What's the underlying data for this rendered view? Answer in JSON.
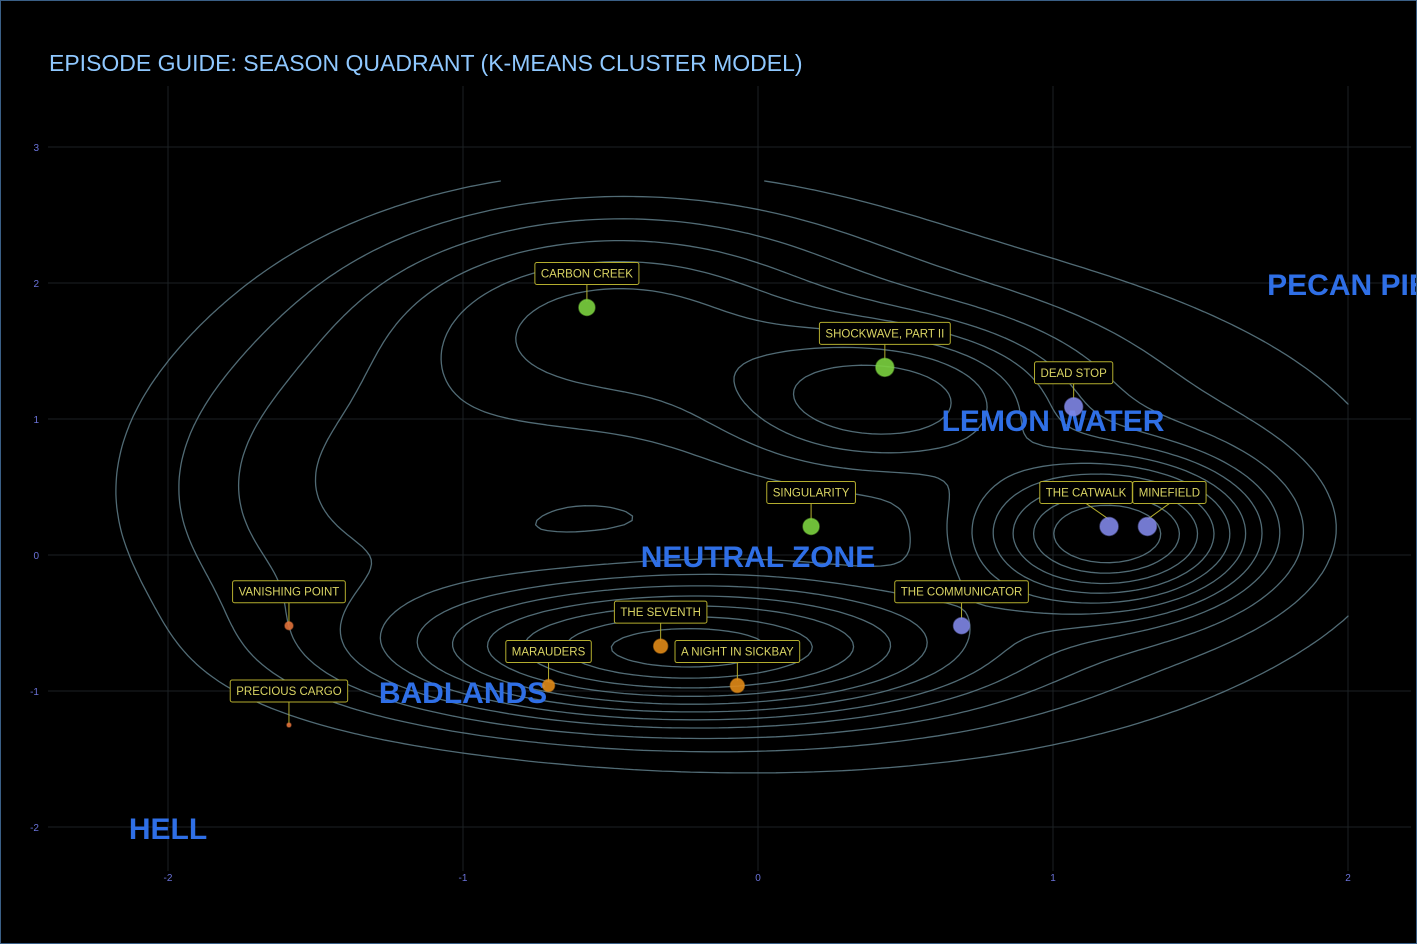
{
  "colors": {
    "background": "#000000",
    "grid": "#1c2124",
    "contour": "#5f7e8a",
    "title": "#8fc8ff",
    "ticks": "#6a72d8",
    "region_label": "#2f6fe6",
    "label_text": "#d9d463",
    "label_border": "#b3ad2e"
  },
  "chart_data": {
    "type": "scatter",
    "title": "EPISODE GUIDE: SEASON QUADRANT (K-MEANS CLUSTER MODEL)",
    "xlabel": "",
    "ylabel": "",
    "xlim": [
      -2.25,
      2.25
    ],
    "ylim": [
      -2.2,
      3.45
    ],
    "x_ticks": [
      -2,
      -1,
      0,
      1,
      2
    ],
    "y_ticks": [
      -2,
      -1,
      0,
      1,
      2,
      3
    ],
    "grid": true,
    "contours": true,
    "regions": [
      {
        "label": "PECAN PIE",
        "x": 2.0,
        "y": 2.0
      },
      {
        "label": "LEMON WATER",
        "x": 1.0,
        "y": 1.0
      },
      {
        "label": "NEUTRAL ZONE",
        "x": 0.0,
        "y": 0.0
      },
      {
        "label": "BADLANDS",
        "x": -1.0,
        "y": -1.0
      },
      {
        "label": "HELL",
        "x": -2.0,
        "y": -2.0
      }
    ],
    "points": [
      {
        "label": "CARBON CREEK",
        "x": -0.58,
        "y": 1.82,
        "color": "#7bd13f",
        "size": 8
      },
      {
        "label": "SHOCKWAVE, PART II",
        "x": 0.43,
        "y": 1.38,
        "color": "#7bd13f",
        "size": 9
      },
      {
        "label": "DEAD STOP",
        "x": 1.07,
        "y": 1.09,
        "color": "#7f86e6",
        "size": 9
      },
      {
        "label": "SINGULARITY",
        "x": 0.18,
        "y": 0.21,
        "color": "#7bd13f",
        "size": 8
      },
      {
        "label": "THE CATWALK",
        "x": 1.19,
        "y": 0.21,
        "color": "#7f86e6",
        "size": 9
      },
      {
        "label": "MINEFIELD",
        "x": 1.32,
        "y": 0.21,
        "color": "#7f86e6",
        "size": 9
      },
      {
        "label": "THE COMMUNICATOR",
        "x": 0.69,
        "y": -0.52,
        "color": "#7f86e6",
        "size": 8
      },
      {
        "label": "VANISHING POINT",
        "x": -1.59,
        "y": -0.52,
        "color": "#e0713a",
        "size": 4
      },
      {
        "label": "THE SEVENTH",
        "x": -0.33,
        "y": -0.67,
        "color": "#e08a17",
        "size": 7
      },
      {
        "label": "MARAUDERS",
        "x": -0.71,
        "y": -0.96,
        "color": "#e08a17",
        "size": 6
      },
      {
        "label": "A NIGHT IN SICKBAY",
        "x": -0.07,
        "y": -0.96,
        "color": "#e08a17",
        "size": 7
      },
      {
        "label": "PRECIOUS CARGO",
        "x": -1.59,
        "y": -1.25,
        "color": "#e0713a",
        "size": 2
      }
    ]
  }
}
